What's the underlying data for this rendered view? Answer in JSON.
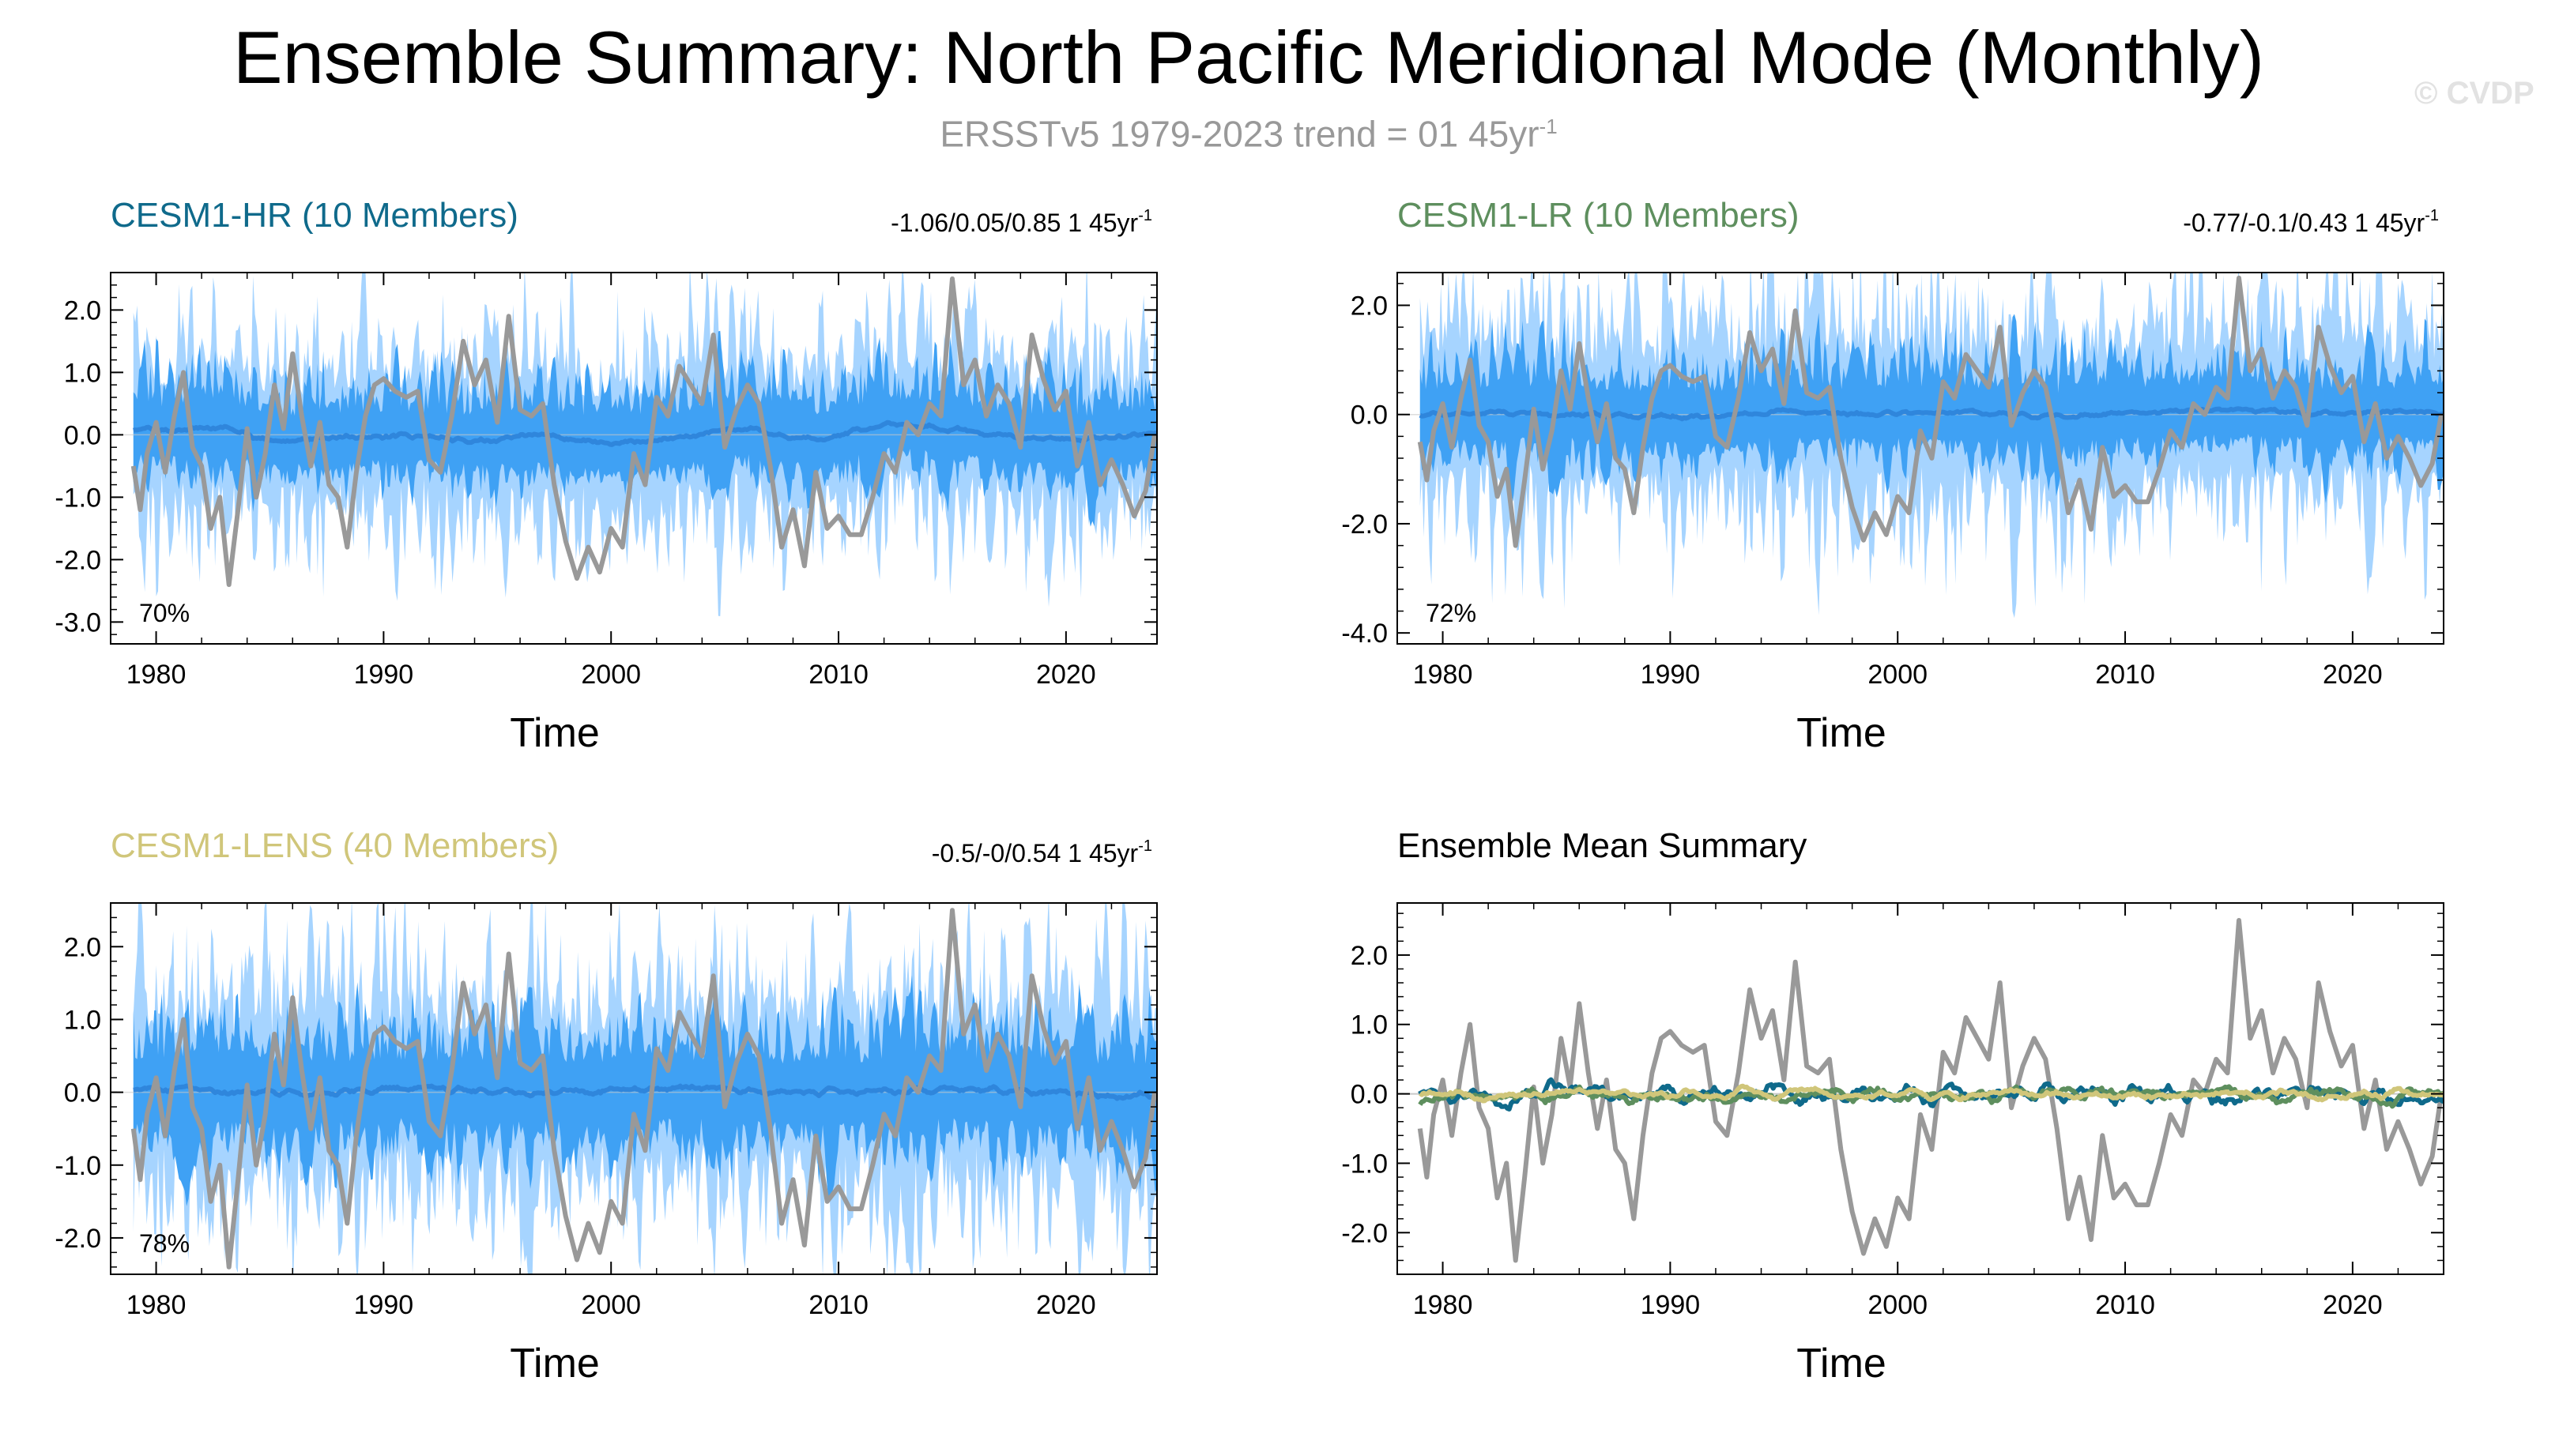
{
  "title": "Ensemble Summary: North Pacific Meridional Mode (Monthly)",
  "subtitle": {
    "text": "ERSSTv5 1979-2023 trend = 01 45yr",
    "sup": "-1"
  },
  "watermark": "© CVDP",
  "colors": {
    "obs": "#999999",
    "shade_outer": "#a6d4ff",
    "shade_inner": "#3fa1f4",
    "mean_line": "#2f86dc",
    "hr": "#0f6a8b",
    "lr": "#5e8f5e",
    "lens": "#d0c67a",
    "zero_line": "#c8c8c8"
  },
  "chart_data": [
    {
      "type": "line",
      "id": "hr",
      "title": "CESM1-HR (10 Members)",
      "title_color": "#0f6a8b",
      "trend_label": "-1.06/0.05/0.85 1 45yr",
      "trend_sup": "-1",
      "percent_label": "70%",
      "xlabel": "Time",
      "xlim": [
        1978,
        2024
      ],
      "ylim": [
        -3.35,
        2.6
      ],
      "yticks": [
        2.0,
        1.0,
        0.0,
        -1.0,
        -2.0,
        -3.0
      ],
      "ytick_labels": [
        "2.0",
        "1.0",
        "0.0",
        "-1.0",
        "-2.0",
        "-3.0"
      ],
      "xticks": [
        1980,
        1990,
        2000,
        2010,
        2020
      ],
      "xtick_labels": [
        "1980",
        "1990",
        "2000",
        "2010",
        "2020"
      ],
      "legend": "none",
      "outer_spread": 1.45,
      "inner_spread": 0.85,
      "seed": 11,
      "ensemble_mean": {
        "x": [
          1979,
          1981,
          1983,
          1985,
          1988,
          1991,
          1994,
          1997,
          2000,
          2003,
          2006,
          2009,
          2012,
          2015,
          2018,
          2021,
          2023
        ],
        "y": [
          0.1,
          0.05,
          0.15,
          -0.1,
          -0.05,
          0.0,
          -0.1,
          0.0,
          -0.15,
          -0.05,
          0.1,
          -0.1,
          0.2,
          0.1,
          -0.05,
          -0.1,
          0.0
        ]
      }
    },
    {
      "type": "line",
      "id": "lr",
      "title": "CESM1-LR (10 Members)",
      "title_color": "#5e8f5e",
      "trend_label": "-0.77/-0.1/0.43 1 45yr",
      "trend_sup": "-1",
      "percent_label": "72%",
      "xlabel": "Time",
      "xlim": [
        1978,
        2024
      ],
      "ylim": [
        -4.2,
        2.6
      ],
      "yticks": [
        2.0,
        0.0,
        -2.0,
        -4.0
      ],
      "ytick_labels": [
        "2.0",
        "0.0",
        "-2.0",
        "-4.0"
      ],
      "xticks": [
        1980,
        1990,
        2000,
        2010,
        2020
      ],
      "xtick_labels": [
        "1980",
        "1990",
        "2000",
        "2010",
        "2020"
      ],
      "legend": "none",
      "outer_spread": 1.9,
      "inner_spread": 1.0,
      "seed": 23,
      "ensemble_mean": {
        "x": [
          1979,
          1983,
          1987,
          1991,
          1995,
          1999,
          2003,
          2007,
          2011,
          2015,
          2019,
          2023
        ],
        "y": [
          0.0,
          0.05,
          0.0,
          -0.05,
          0.05,
          0.0,
          0.05,
          -0.05,
          0.05,
          0.1,
          0.0,
          0.05
        ]
      }
    },
    {
      "type": "line",
      "id": "lens",
      "title": "CESM1-LENS (40 Members)",
      "title_color": "#d0c67a",
      "trend_label": "-0.5/-0/0.54 1 45yr",
      "trend_sup": "-1",
      "percent_label": "78%",
      "xlabel": "Time",
      "xlim": [
        1978,
        2024
      ],
      "ylim": [
        -2.5,
        2.6
      ],
      "yticks": [
        2.0,
        1.0,
        0.0,
        -1.0,
        -2.0
      ],
      "ytick_labels": [
        "2.0",
        "1.0",
        "0.0",
        "-1.0",
        "-2.0"
      ],
      "xticks": [
        1980,
        1990,
        2000,
        2010,
        2020
      ],
      "xtick_labels": [
        "1980",
        "1990",
        "2000",
        "2010",
        "2020"
      ],
      "legend": "none",
      "outer_spread": 1.55,
      "inner_spread": 0.9,
      "seed": 37,
      "ensemble_mean": {
        "x": [
          1979,
          1983,
          1987,
          1991,
          1995,
          1999,
          2003,
          2007,
          2011,
          2015,
          2019,
          2023
        ],
        "y": [
          0.05,
          0.0,
          0.0,
          0.05,
          0.0,
          0.0,
          0.05,
          0.0,
          0.0,
          0.05,
          0.0,
          -0.05
        ]
      }
    },
    {
      "type": "line",
      "id": "summary",
      "title": "Ensemble Mean Summary",
      "title_color": "#000000",
      "trend_label": "",
      "trend_sup": "",
      "percent_label": "",
      "xlabel": "Time",
      "xlim": [
        1978,
        2024
      ],
      "ylim": [
        -2.6,
        2.75
      ],
      "yticks": [
        2.0,
        1.0,
        0.0,
        -1.0,
        -2.0
      ],
      "ytick_labels": [
        "2.0",
        "1.0",
        "0.0",
        "-1.0",
        "-2.0"
      ],
      "xticks": [
        1980,
        1990,
        2000,
        2010,
        2020
      ],
      "xtick_labels": [
        "1980",
        "1990",
        "2000",
        "2010",
        "2020"
      ],
      "legend": "none",
      "series": [
        {
          "name": "CESM1-HR",
          "color": "#0f6a8b",
          "seed": 101,
          "amp": 0.13
        },
        {
          "name": "CESM1-LR",
          "color": "#5e8f5e",
          "seed": 202,
          "amp": 0.1
        },
        {
          "name": "CESM1-LENS",
          "color": "#d0c67a",
          "seed": 303,
          "amp": 0.06
        }
      ]
    }
  ],
  "observations": {
    "name": "ERSSTv5",
    "x": [
      1979.0,
      1979.3,
      1979.6,
      1980.0,
      1980.4,
      1980.8,
      1981.2,
      1981.6,
      1982.0,
      1982.4,
      1982.8,
      1983.2,
      1983.6,
      1984.0,
      1984.4,
      1984.8,
      1985.2,
      1985.6,
      1986.0,
      1986.4,
      1986.8,
      1987.2,
      1987.6,
      1988.0,
      1988.4,
      1988.8,
      1989.2,
      1989.6,
      1990.0,
      1990.5,
      1991.0,
      1991.5,
      1992.0,
      1992.5,
      1993.0,
      1993.5,
      1994.0,
      1994.5,
      1995.0,
      1995.5,
      1996.0,
      1996.5,
      1997.0,
      1997.5,
      1998.0,
      1998.5,
      1999.0,
      1999.5,
      2000.0,
      2000.5,
      2001.0,
      2001.5,
      2002.0,
      2002.5,
      2003.0,
      2003.5,
      2004.0,
      2004.5,
      2005.0,
      2005.5,
      2006.0,
      2006.5,
      2007.0,
      2007.5,
      2008.0,
      2008.5,
      2009.0,
      2009.5,
      2010.0,
      2010.5,
      2011.0,
      2011.5,
      2012.0,
      2012.5,
      2013.0,
      2013.5,
      2014.0,
      2014.5,
      2015.0,
      2015.5,
      2016.0,
      2016.5,
      2017.0,
      2017.5,
      2018.0,
      2018.5,
      2019.0,
      2019.5,
      2020.0,
      2020.5,
      2021.0,
      2021.5,
      2022.0,
      2022.5,
      2023.0,
      2023.5,
      2023.9
    ],
    "y": [
      -0.5,
      -1.2,
      -0.3,
      0.2,
      -0.6,
      0.3,
      1.0,
      -0.2,
      -0.5,
      -1.5,
      -1.0,
      -2.4,
      -1.2,
      0.1,
      -1.0,
      -0.3,
      0.8,
      0.1,
      1.3,
      0.3,
      -0.5,
      0.2,
      -0.8,
      -1.0,
      -1.8,
      -0.6,
      0.3,
      0.8,
      0.9,
      0.7,
      0.6,
      0.7,
      -0.4,
      -0.6,
      0.3,
      1.5,
      0.8,
      1.2,
      0.2,
      1.9,
      0.4,
      0.3,
      0.5,
      -0.8,
      -1.7,
      -2.3,
      -1.8,
      -2.2,
      -1.5,
      -1.8,
      -0.3,
      -0.8,
      0.6,
      0.3,
      1.1,
      0.8,
      0.5,
      1.6,
      -0.2,
      0.4,
      0.8,
      0.5,
      -0.5,
      -1.8,
      -1.2,
      -2.1,
      -0.6,
      -1.5,
      -1.3,
      -1.6,
      -1.6,
      -1.0,
      -0.3,
      -0.6,
      0.2,
      0.0,
      0.5,
      0.3,
      2.5,
      0.8,
      1.2,
      0.3,
      0.8,
      0.5,
      -0.2,
      1.6,
      0.9,
      0.4,
      0.7,
      -0.5,
      0.2,
      -0.8,
      -0.4,
      -0.8,
      -1.3,
      -0.9,
      0.0
    ]
  }
}
